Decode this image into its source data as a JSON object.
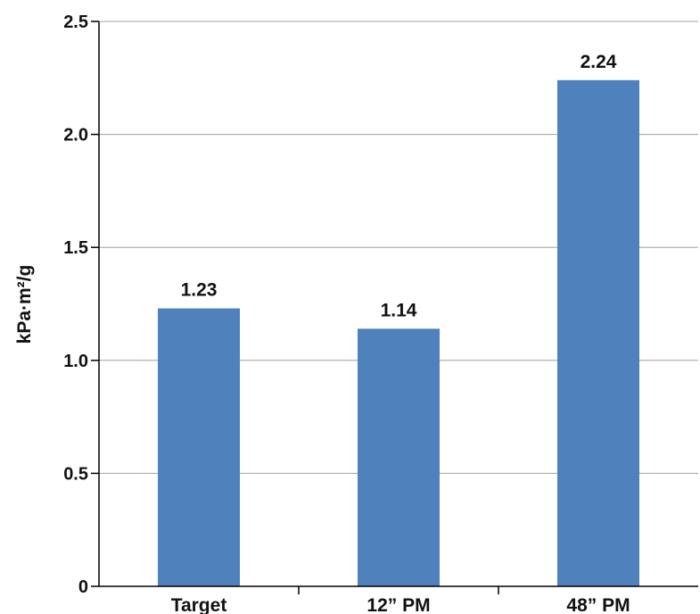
{
  "chart_data": {
    "type": "bar",
    "title": "",
    "xlabel": "",
    "ylabel": "kPa·m²/g",
    "categories": [
      "Target",
      "12” PM",
      "48” PM"
    ],
    "values": [
      1.23,
      1.14,
      2.24
    ],
    "data_labels": [
      "1.23",
      "1.14",
      "2.24"
    ],
    "ylim": [
      0,
      2.5
    ],
    "yticks": [
      0,
      0.5,
      1.0,
      1.5,
      2.0,
      2.5
    ],
    "ytick_labels": [
      "0",
      "0.5",
      "1.0",
      "1.5",
      "2.0",
      "2.5"
    ],
    "grid": true,
    "legend": "none",
    "bar_color": "#4f81bd"
  }
}
